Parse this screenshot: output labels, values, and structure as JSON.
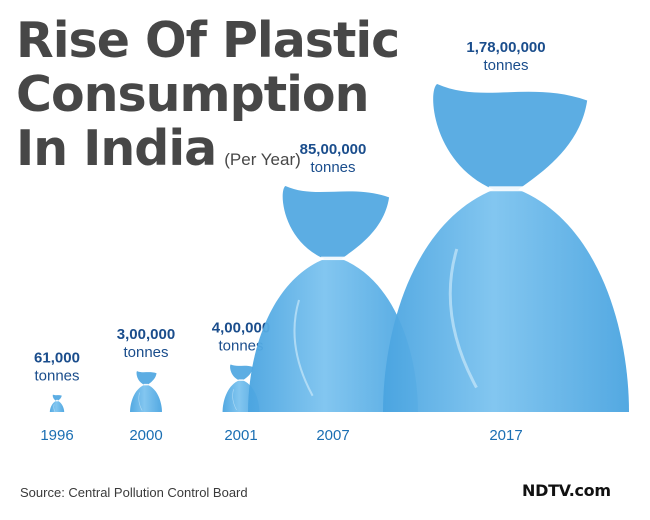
{
  "title_lines": [
    "Rise Of Plastic",
    "Consumption",
    "In India"
  ],
  "subtitle": "(Per Year)",
  "source": "Source: Central Pollution Control Board",
  "logo": "NDTV.com",
  "colors": {
    "bag": "#4aa4e0",
    "bag_light": "#7cc3ef",
    "value_text": "#1a4d8c",
    "year_text": "#1b6fb3",
    "title_text": "#474747"
  },
  "chart_data": {
    "type": "bar",
    "title": "Rise Of Plastic Consumption In India",
    "subtitle": "(Per Year)",
    "mark": "plastic-bag-icon",
    "unit": "tonnes",
    "categories": [
      "1996",
      "2000",
      "2001",
      "2007",
      "2017"
    ],
    "values": [
      61000,
      300000,
      400000,
      8500000,
      17800000
    ],
    "value_labels": [
      "61,000",
      "3,00,000",
      "4,00,000",
      "85,00,000",
      "1,78,00,000"
    ]
  }
}
